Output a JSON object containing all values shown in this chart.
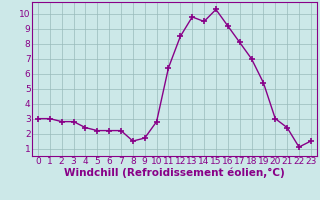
{
  "x": [
    0,
    1,
    2,
    3,
    4,
    5,
    6,
    7,
    8,
    9,
    10,
    11,
    12,
    13,
    14,
    15,
    16,
    17,
    18,
    19,
    20,
    21,
    22,
    23
  ],
  "y": [
    3.0,
    3.0,
    2.8,
    2.8,
    2.4,
    2.2,
    2.2,
    2.2,
    1.5,
    1.7,
    2.8,
    6.4,
    8.5,
    9.8,
    9.5,
    10.3,
    9.2,
    8.1,
    7.0,
    5.4,
    3.0,
    2.4,
    1.1,
    1.5
  ],
  "line_color": "#880088",
  "marker": "+",
  "marker_size": 5,
  "bg_color": "#cce8e8",
  "grid_color": "#99bbbb",
  "xlabel": "Windchill (Refroidissement éolien,°C)",
  "xlim": [
    -0.5,
    23.5
  ],
  "ylim": [
    0.5,
    10.8
  ],
  "yticks": [
    1,
    2,
    3,
    4,
    5,
    6,
    7,
    8,
    9,
    10
  ],
  "xticks": [
    0,
    1,
    2,
    3,
    4,
    5,
    6,
    7,
    8,
    9,
    10,
    11,
    12,
    13,
    14,
    15,
    16,
    17,
    18,
    19,
    20,
    21,
    22,
    23
  ],
  "tick_fontsize": 6.5,
  "xlabel_fontsize": 7.5,
  "line_width": 1.0,
  "marker_color": "#880088"
}
